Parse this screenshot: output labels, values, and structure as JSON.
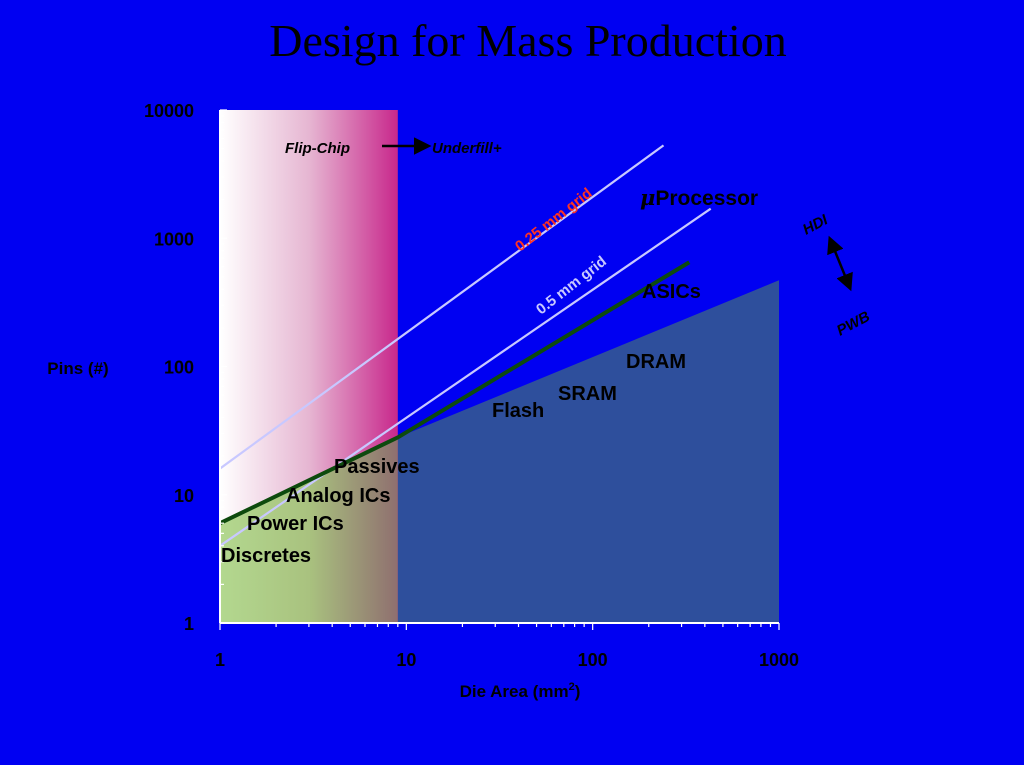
{
  "title": "Design for Mass Production",
  "chart_data": {
    "type": "line",
    "xscale": "log",
    "yscale": "log",
    "xlim": [
      1,
      1000
    ],
    "ylim": [
      1,
      10000
    ],
    "x_ticks": [
      "1",
      "10",
      "100",
      "1000"
    ],
    "y_ticks": [
      "1",
      "10",
      "100",
      "1000",
      "10000"
    ],
    "xlabel": "Die Area (mm",
    "xlabel_sup": "2",
    "xlabel_close": ")",
    "ylabel": "Pins (#)",
    "grid": false,
    "series": [
      {
        "name": "0.25 mm grid",
        "x": [
          1,
          240
        ],
        "y": [
          16,
          5300
        ],
        "color": "#c8c8ff"
      },
      {
        "name": "0.5 mm grid",
        "x": [
          1,
          430
        ],
        "y": [
          4,
          1700
        ],
        "color": "#c8c8ff"
      },
      {
        "x": [
          1,
          9,
          330
        ],
        "y": [
          6,
          28,
          650
        ],
        "color": "#0d4a0d"
      }
    ],
    "regions": [
      {
        "label": "Flip-Chip",
        "x": [
          1,
          9
        ],
        "y": [
          1,
          10000
        ]
      },
      {
        "x": [
          9,
          1000
        ],
        "y": [
          1,
          470
        ],
        "color": "#2e4f9c"
      }
    ],
    "annotations": {
      "flip_chip": "Flip-Chip",
      "underfill": "Underfill+",
      "grid_025_part1": "0.25 m",
      "grid_025_part2": "m grid",
      "grid_05": "0.5 mm grid",
      "mu": "μ",
      "processor": "Processor",
      "asics": "ASICs",
      "dram": "DRAM",
      "sram": "SRAM",
      "flash": "Flash",
      "passives": "Passives",
      "analog": "Analog ICs",
      "power": "Power ICs",
      "discretes": "Discretes",
      "hdi": "HDI",
      "pwb": "PWB"
    },
    "colors": {
      "background": "#0000f2",
      "grid_lines": "#c8c8ff",
      "grid_025_red": "#ff3322",
      "trend_line": "#0d4a0d",
      "shaded_region": "#2e4f9c",
      "flip_chip_band_end": "#c8288c",
      "discretes_fill": "#a9d08e"
    }
  }
}
